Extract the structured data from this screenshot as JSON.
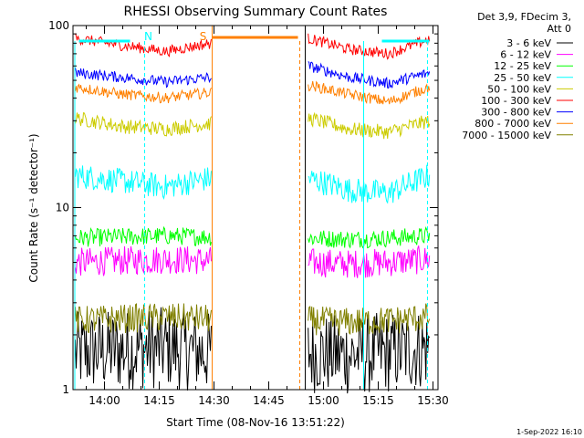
{
  "chart_data": {
    "type": "line",
    "title": "RHESSI Observing Summary Count Rates",
    "xlabel": "Start Time (08-Nov-16 13:51:22)",
    "ylabel": "Count Rate (s⁻¹ detector⁻¹)",
    "y_scale": "log",
    "ylim": [
      1,
      100
    ],
    "y_ticks": [
      "1",
      "10",
      "100"
    ],
    "x_ticks": [
      "14:00",
      "14:15",
      "14:30",
      "14:45",
      "15:00",
      "15:15",
      "15:30"
    ],
    "x_tick_minutes": [
      840,
      855,
      870,
      885,
      900,
      915,
      930
    ],
    "xlim_minutes": [
      831.37,
      931.37
    ],
    "legend_header": [
      "Det 3,9, FDecim 3,",
      "Att 0"
    ],
    "timestamp": "1-Sep-2022 16:10",
    "flag_labels": [
      {
        "text": "N",
        "minute": 852,
        "color": "#00ffff"
      },
      {
        "text": "S",
        "minute": 867,
        "color": "#ff8000"
      }
    ],
    "gap_minutes": [
      869.5,
      895
    ],
    "series": [
      {
        "name": "3 - 6 keV",
        "color": "#000000",
        "left": [
          1.6,
          1.65,
          1.7,
          1.6
        ],
        "right": [
          1.6,
          1.55,
          1.6,
          1.7
        ]
      },
      {
        "name": "6 - 12 keV",
        "color": "#ff00ff",
        "left": [
          5.0,
          5.1,
          5.2,
          5.1
        ],
        "right": [
          5.0,
          4.9,
          5.0,
          5.2
        ]
      },
      {
        "name": "12 - 25 keV",
        "color": "#00ff00",
        "left": [
          6.8,
          6.9,
          7.0,
          6.9
        ],
        "right": [
          6.8,
          6.7,
          6.8,
          7.0
        ]
      },
      {
        "name": "25 - 50 keV",
        "color": "#00ffff",
        "left": [
          15.0,
          14.0,
          13.0,
          14.5
        ],
        "right": [
          14.5,
          12.5,
          12.0,
          15.0
        ]
      },
      {
        "name": "50 - 100 keV",
        "color": "#cccc00",
        "left": [
          31.0,
          28.0,
          27.0,
          29.0
        ],
        "right": [
          31.0,
          27.0,
          26.0,
          30.0
        ]
      },
      {
        "name": "100 - 300 keV",
        "color": "#ff0000",
        "left": [
          85.0,
          78.0,
          72.0,
          80.0
        ],
        "right": [
          85.0,
          74.0,
          70.0,
          84.0
        ]
      },
      {
        "name": "300 - 800 keV",
        "color": "#0000ff",
        "left": [
          55.0,
          52.0,
          49.0,
          52.0
        ],
        "right": [
          60.0,
          52.0,
          48.0,
          55.0
        ]
      },
      {
        "name": "800 - 7000 keV",
        "color": "#ff8000",
        "left": [
          46.0,
          42.0,
          40.0,
          43.0
        ],
        "right": [
          47.0,
          42.0,
          38.0,
          46.0
        ]
      },
      {
        "name": "7000 - 15000 keV",
        "color": "#808000",
        "left": [
          2.4,
          2.45,
          2.5,
          2.45
        ],
        "right": [
          2.4,
          2.35,
          2.4,
          2.5
        ]
      }
    ]
  }
}
